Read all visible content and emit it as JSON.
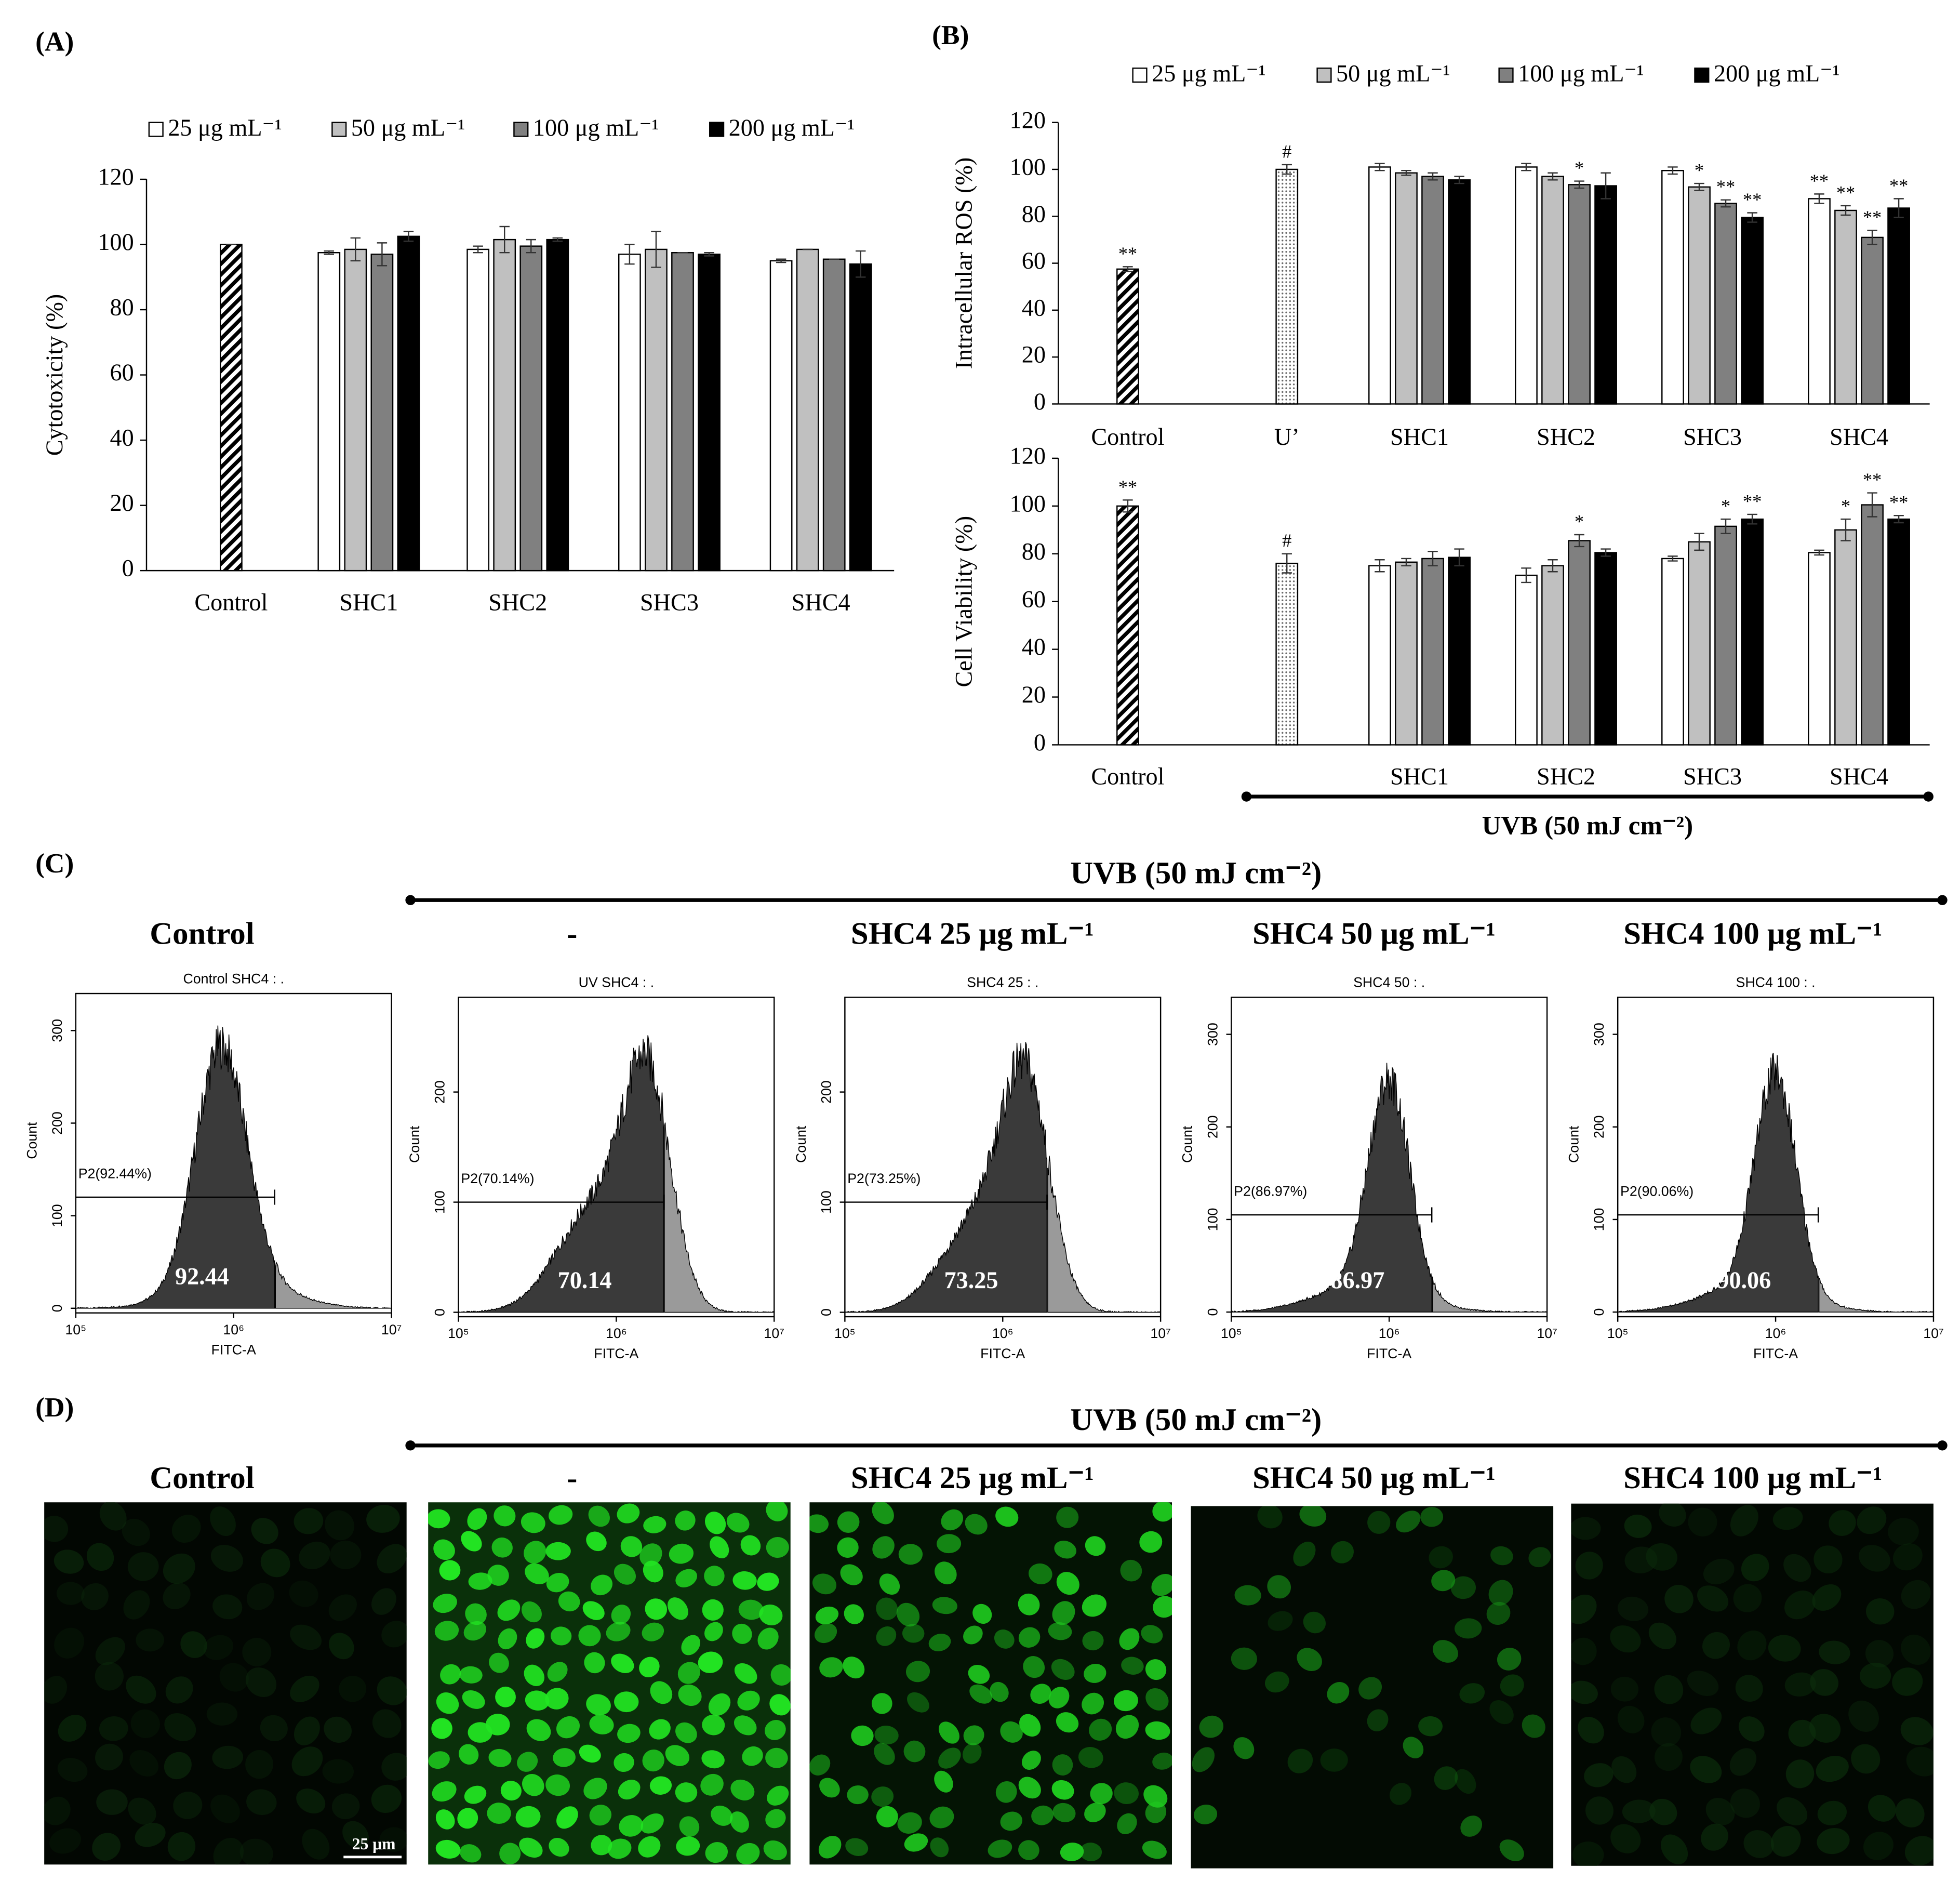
{
  "chart_data": [
    {
      "type": "bar",
      "panel": "(A)",
      "ylabel": "Cytotoxicity (%)",
      "categories": [
        "Control",
        "SHC1",
        "SHC2",
        "SHC3",
        "SHC4"
      ],
      "ylim": [
        0,
        120
      ],
      "yticks": [
        0,
        20,
        40,
        60,
        80,
        100,
        120
      ],
      "single_values": [
        100,
        null,
        null,
        null,
        null
      ],
      "single_errors": [
        0,
        null,
        null,
        null,
        null
      ],
      "series": [
        {
          "name": "25 μg mL⁻¹",
          "color": "#ffffff",
          "values": [
            null,
            97.5,
            98.5,
            97,
            95
          ],
          "errors": [
            null,
            0.5,
            1,
            3,
            0.5
          ]
        },
        {
          "name": "50 μg mL⁻¹",
          "color": "#c0c0c0",
          "values": [
            null,
            98.5,
            101.5,
            98.5,
            98.5
          ],
          "errors": [
            null,
            3.5,
            4,
            5.5,
            0
          ]
        },
        {
          "name": "100 μg mL⁻¹",
          "color": "#808080",
          "values": [
            null,
            97,
            99.5,
            97.5,
            95.5
          ],
          "errors": [
            null,
            3.5,
            2,
            0,
            0
          ]
        },
        {
          "name": "200 μg mL⁻¹",
          "color": "#000000",
          "values": [
            null,
            102.5,
            101.5,
            97,
            94
          ],
          "errors": [
            null,
            1.5,
            0.5,
            0.5,
            4
          ]
        }
      ]
    },
    {
      "type": "bar",
      "panel": "(B)",
      "ylabel": "Intracellular ROS (%)",
      "categories": [
        "Control",
        "U’",
        "SHC1",
        "SHC2",
        "SHC3",
        "SHC4"
      ],
      "ylim": [
        0,
        120
      ],
      "yticks": [
        0,
        20,
        40,
        60,
        80,
        100,
        120
      ],
      "single_values": [
        57.5,
        100,
        null,
        null,
        null,
        null
      ],
      "single_errors": [
        1,
        2,
        null,
        null,
        null,
        null
      ],
      "single_annotations": [
        "**",
        "#",
        null,
        null,
        null,
        null
      ],
      "series": [
        {
          "name": "25 μg mL⁻¹",
          "color": "#ffffff",
          "values": [
            null,
            null,
            101,
            101,
            99.5,
            87.5
          ],
          "errors": [
            null,
            null,
            1.5,
            1.5,
            1.5,
            2
          ],
          "annotations": [
            null,
            null,
            null,
            null,
            null,
            "**"
          ]
        },
        {
          "name": "50 μg mL⁻¹",
          "color": "#c0c0c0",
          "values": [
            null,
            null,
            98.5,
            97,
            92.5,
            82.5
          ],
          "errors": [
            null,
            null,
            1,
            1.5,
            1.5,
            2
          ],
          "annotations": [
            null,
            null,
            null,
            null,
            "*",
            "**"
          ]
        },
        {
          "name": "100 μg mL⁻¹",
          "color": "#808080",
          "values": [
            null,
            null,
            97,
            93.5,
            85.5,
            71
          ],
          "errors": [
            null,
            null,
            1.5,
            1.5,
            1.5,
            3
          ],
          "annotations": [
            null,
            null,
            null,
            "*",
            "**",
            "**"
          ]
        },
        {
          "name": "200 μg mL⁻¹",
          "color": "#000000",
          "values": [
            null,
            null,
            95.5,
            93,
            79.5,
            83.5
          ],
          "errors": [
            null,
            null,
            1.5,
            5.5,
            2,
            4
          ],
          "annotations": [
            null,
            null,
            null,
            null,
            "**",
            "**"
          ]
        }
      ]
    },
    {
      "type": "bar",
      "ylabel": "Cell Viability (%)",
      "categories": [
        "Control",
        null,
        "SHC1",
        "SHC2",
        "SHC3",
        "SHC4"
      ],
      "ylim": [
        0,
        120
      ],
      "yticks": [
        0,
        20,
        40,
        60,
        80,
        100,
        120
      ],
      "bracket_label": "UVB (50 mJ cm⁻²)",
      "single_values": [
        100,
        76,
        null,
        null,
        null,
        null
      ],
      "single_errors": [
        2.5,
        4,
        null,
        null,
        null,
        null
      ],
      "single_annotations": [
        "**",
        "#",
        null,
        null,
        null,
        null
      ],
      "series": [
        {
          "color": "#ffffff",
          "values": [
            null,
            null,
            75,
            71,
            78,
            80.5
          ],
          "errors": [
            null,
            null,
            2.5,
            3,
            1,
            1
          ],
          "annotations": [
            null,
            null,
            null,
            null,
            null,
            null
          ]
        },
        {
          "color": "#c0c0c0",
          "values": [
            null,
            null,
            76.5,
            75,
            85,
            90
          ],
          "errors": [
            null,
            null,
            1.5,
            2.5,
            3.5,
            4.5
          ],
          "annotations": [
            null,
            null,
            null,
            null,
            null,
            "*"
          ]
        },
        {
          "color": "#808080",
          "values": [
            null,
            null,
            78,
            85.5,
            91.5,
            100.5
          ],
          "errors": [
            null,
            null,
            3,
            2.5,
            3,
            5
          ],
          "annotations": [
            null,
            null,
            null,
            "*",
            "*",
            "**"
          ]
        },
        {
          "color": "#000000",
          "values": [
            null,
            null,
            78.5,
            80.5,
            94.5,
            94.5
          ],
          "errors": [
            null,
            null,
            3.5,
            1.5,
            2,
            1.5
          ],
          "annotations": [
            null,
            null,
            null,
            null,
            "**",
            "**"
          ]
        }
      ]
    }
  ],
  "flow": {
    "panel": "(C)",
    "header": "UVB (50 mJ cm⁻²)",
    "column_titles": [
      "Control",
      "-",
      "SHC4 25 μg mL⁻¹",
      "SHC4 50 μg mL⁻¹",
      "SHC4 100 μg mL⁻¹"
    ],
    "plots": [
      {
        "title": "Control SHC4 : .",
        "gate_label": "P2(92.44%)",
        "value": 92.44,
        "xlabel": "FITC-A",
        "ylabel": "Count",
        "log_x": true,
        "xlim": [
          100000,
          10000000
        ],
        "xticks": [
          {
            "value": 100000,
            "label": "10⁵"
          },
          {
            "value": 1000000,
            "label": "10⁶"
          },
          {
            "value": 10000000,
            "label": "10⁷"
          }
        ],
        "ylim": [
          -5,
          340
        ],
        "yticks": [
          0,
          100,
          200,
          300
        ]
      },
      {
        "title": "UV SHC4 : .",
        "gate_label": "P2(70.14%)",
        "value": 70.14,
        "xlabel": "FITC-A",
        "ylabel": "Count",
        "log_x": true,
        "xlim": [
          100000,
          10000000
        ],
        "xticks": [
          {
            "value": 100000,
            "label": "10⁵"
          },
          {
            "value": 1000000,
            "label": "10⁶"
          },
          {
            "value": 10000000,
            "label": "10⁷"
          }
        ],
        "ylim": [
          -4,
          286
        ],
        "yticks": [
          0,
          100,
          200
        ]
      },
      {
        "title": "SHC4 25 : .",
        "gate_label": "P2(73.25%)",
        "value": 73.25,
        "xlabel": "FITC-A",
        "ylabel": "Count",
        "log_x": true,
        "xlim": [
          100000,
          10000000
        ],
        "xticks": [
          {
            "value": 100000,
            "label": "10⁵"
          },
          {
            "value": 1000000,
            "label": "10⁶"
          },
          {
            "value": 10000000,
            "label": "10⁷"
          }
        ],
        "ylim": [
          -4,
          286
        ],
        "yticks": [
          0,
          100,
          200
        ]
      },
      {
        "title": "SHC4 50 : .",
        "gate_label": "P2(86.97%)",
        "value": 86.97,
        "xlabel": "FITC-A",
        "ylabel": "Count",
        "log_x": true,
        "xlim": [
          100000,
          10000000
        ],
        "xticks": [
          {
            "value": 100000,
            "label": "10⁵"
          },
          {
            "value": 1000000,
            "label": "10⁶"
          },
          {
            "value": 10000000,
            "label": "10⁷"
          }
        ],
        "ylim": [
          -5,
          340
        ],
        "yticks": [
          0,
          100,
          200,
          300
        ]
      },
      {
        "title": "SHC4 100 : .",
        "gate_label": "P2(90.06%)",
        "value": 90.06,
        "xlabel": "FITC-A",
        "ylabel": "Count",
        "log_x": true,
        "xlim": [
          100000,
          10000000
        ],
        "xticks": [
          {
            "value": 100000,
            "label": "10⁵"
          },
          {
            "value": 1000000,
            "label": "10⁶"
          },
          {
            "value": 10000000,
            "label": "10⁷"
          }
        ],
        "ylim": [
          -5,
          340
        ],
        "yticks": [
          0,
          100,
          200,
          300
        ]
      }
    ]
  },
  "images": {
    "panel": "(D)",
    "header": "UVB (50 mJ cm⁻²)",
    "column_titles": [
      "Control",
      "-",
      "SHC4 25 μg mL⁻¹",
      "SHC4 50 μg mL⁻¹",
      "SHC4 100 μg mL⁻¹"
    ],
    "scale_bar": "25 μm"
  }
}
